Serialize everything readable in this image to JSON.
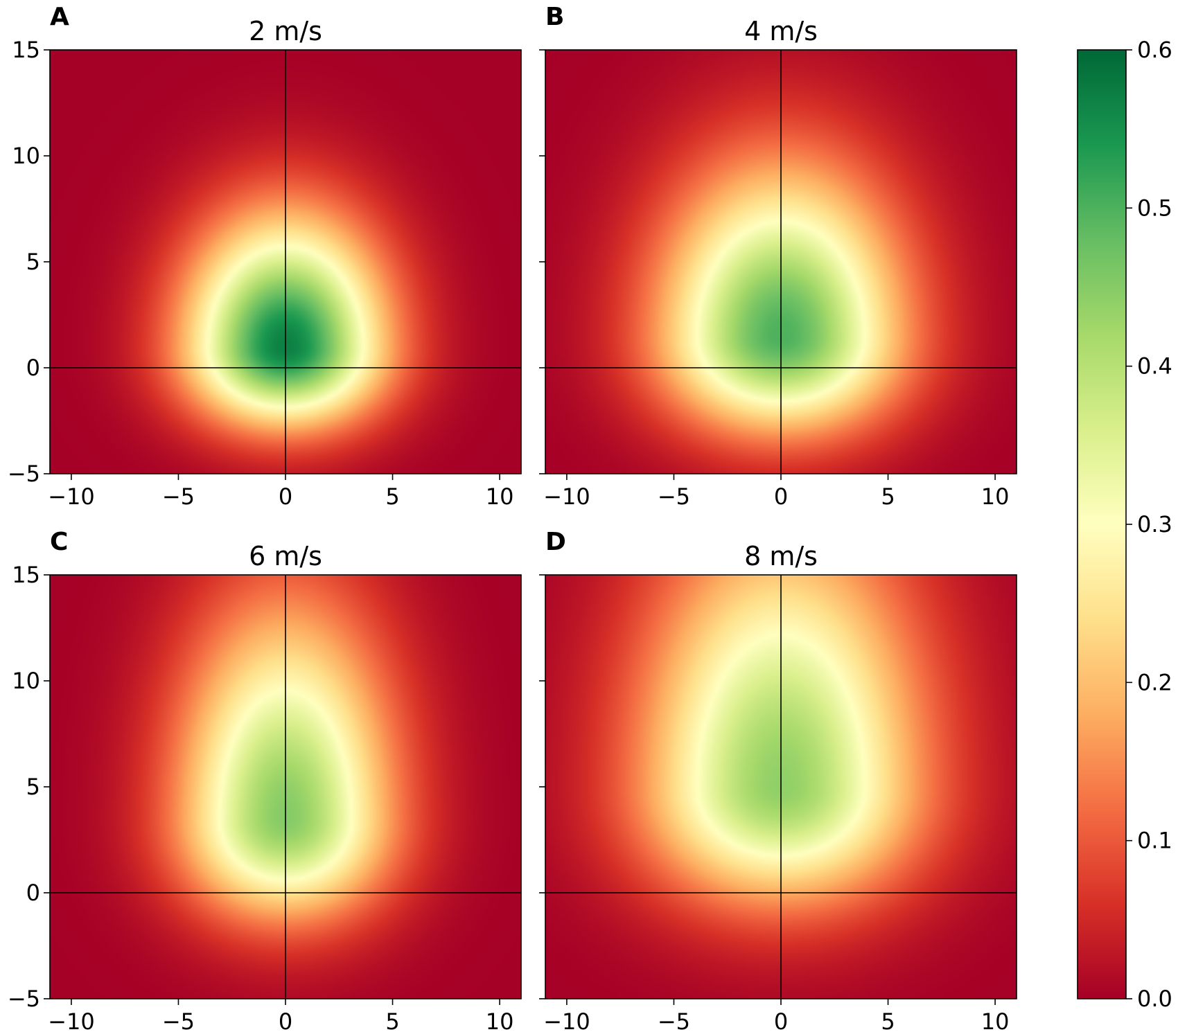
{
  "chart_data": [
    {
      "type": "heatmap",
      "panel_label": "A",
      "title": "2 m/s",
      "xlim": [
        -11,
        11
      ],
      "ylim": [
        -5,
        15
      ],
      "xticks": [
        -10,
        -5,
        0,
        5,
        10
      ],
      "yticks": [
        -5,
        0,
        5,
        10,
        15
      ],
      "x_tick_labels": [
        "−10",
        "−5",
        "0",
        "5",
        "10"
      ],
      "y_tick_labels": [
        "−5",
        "0",
        "5",
        "10",
        "15"
      ],
      "reference_lines": {
        "x": 0,
        "y": 0
      },
      "field": {
        "peak_value": 0.57,
        "center": [
          0,
          1
        ],
        "sigma_x": 4.3,
        "sigma_y_up": 5.6,
        "sigma_y_down": 3.4
      }
    },
    {
      "type": "heatmap",
      "panel_label": "B",
      "title": "4 m/s",
      "xlim": [
        -11,
        11
      ],
      "ylim": [
        -5,
        15
      ],
      "xticks": [
        -10,
        -5,
        0,
        5,
        10
      ],
      "yticks": [
        -5,
        0,
        5,
        10,
        15
      ],
      "x_tick_labels": [
        "−10",
        "−5",
        "0",
        "5",
        "10"
      ],
      "y_tick_labels": [
        "−5",
        "0",
        "5",
        "10",
        "15"
      ],
      "reference_lines": {
        "x": 0,
        "y": 0
      },
      "field": {
        "peak_value": 0.5,
        "center": [
          0,
          1.5
        ],
        "sigma_x": 5.2,
        "sigma_y_up": 7.2,
        "sigma_y_down": 4.1
      }
    },
    {
      "type": "heatmap",
      "panel_label": "C",
      "title": "6 m/s",
      "xlim": [
        -11,
        11
      ],
      "ylim": [
        -5,
        15
      ],
      "xticks": [
        -10,
        -5,
        0,
        5,
        10
      ],
      "yticks": [
        -5,
        0,
        5,
        10,
        15
      ],
      "x_tick_labels": [
        "−10",
        "−5",
        "0",
        "5",
        "10"
      ],
      "y_tick_labels": [
        "−5",
        "0",
        "5",
        "10",
        "15"
      ],
      "reference_lines": {
        "x": 0,
        "y": 0
      },
      "field": {
        "peak_value": 0.45,
        "center": [
          0,
          3.5
        ],
        "sigma_x": 4.6,
        "sigma_y_up": 9,
        "sigma_y_down": 4.3
      }
    },
    {
      "type": "heatmap",
      "panel_label": "D",
      "title": "8 m/s",
      "xlim": [
        -11,
        11
      ],
      "ylim": [
        -5,
        15
      ],
      "xticks": [
        -10,
        -5,
        0,
        5,
        10
      ],
      "yticks": [
        -5,
        0,
        5,
        10,
        15
      ],
      "x_tick_labels": [
        "−10",
        "−5",
        "0",
        "5",
        "10"
      ],
      "y_tick_labels": [
        "−5",
        "0",
        "5",
        "10",
        "15"
      ],
      "reference_lines": {
        "x": 0,
        "y": 0
      },
      "field": {
        "peak_value": 0.44,
        "center": [
          0,
          5
        ],
        "sigma_x": 6,
        "sigma_y_up": 11,
        "sigma_y_down": 5
      }
    }
  ],
  "colorbar": {
    "colormap": "RdYlGn",
    "range": [
      0,
      0.6
    ],
    "ticks": [
      0.0,
      0.1,
      0.2,
      0.3,
      0.4,
      0.5,
      0.6
    ],
    "tick_labels": [
      "0.0",
      "0.1",
      "0.2",
      "0.3",
      "0.4",
      "0.5",
      "0.6"
    ],
    "stops": [
      "#a50026",
      "#d73027",
      "#f46d43",
      "#fdae61",
      "#fee08b",
      "#ffffbf",
      "#d9ef8b",
      "#a6d96a",
      "#66bd63",
      "#1a9850",
      "#006837"
    ]
  }
}
